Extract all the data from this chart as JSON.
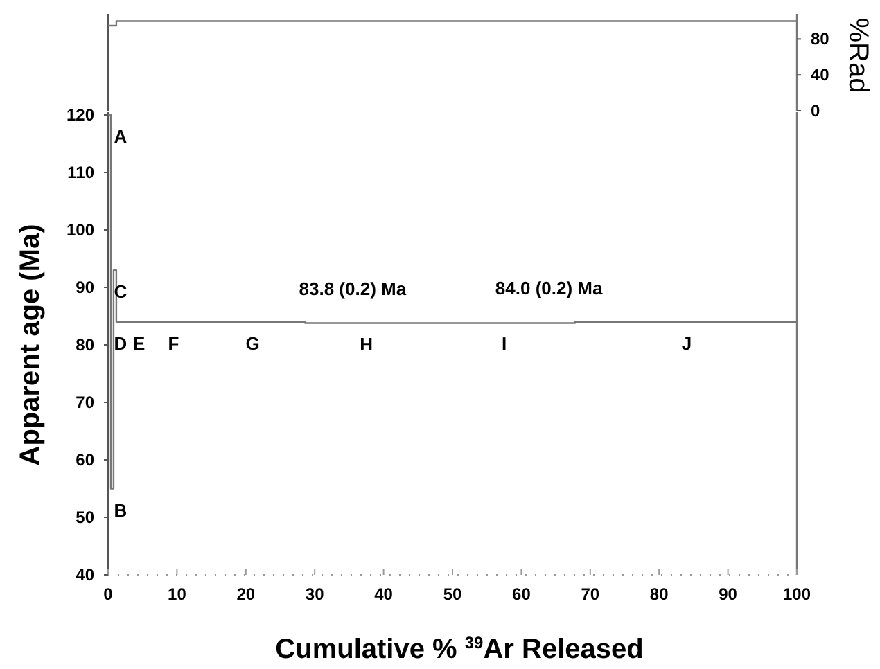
{
  "chart_data": [
    {
      "type": "step",
      "ylabel": "%Rad",
      "x": [
        0,
        0.4,
        0.8,
        1.2,
        2.2,
        5.6,
        12.9,
        28.6,
        46.7,
        67.8,
        100
      ],
      "values": [
        95,
        95,
        95,
        100,
        100,
        100,
        100,
        100,
        100,
        100,
        100
      ],
      "color": "#777777",
      "xlim": [
        0,
        100
      ],
      "ylim": [
        0,
        105
      ],
      "yticks": [
        0,
        40,
        80
      ],
      "tick_labels": "y"
    },
    {
      "type": "step",
      "xlabel": "Cumulative % $^{39}$Ar Released",
      "ylabel": "Apparent  age (Ma)",
      "x": [
        0,
        0.4,
        0.8,
        1.2,
        2.2,
        5.6,
        12.9,
        28.6,
        46.7,
        67.8,
        100
      ],
      "values": [
        120,
        55,
        93,
        84,
        84,
        84,
        84,
        83.8,
        83.8,
        84.0,
        84.0
      ],
      "color": "#777777",
      "xlim": [
        0,
        100
      ],
      "xticks": [
        0,
        10,
        20,
        30,
        40,
        50,
        60,
        70,
        80,
        90,
        100
      ],
      "ylim": [
        40,
        120
      ],
      "yticks": [
        40,
        50,
        60,
        70,
        80,
        90,
        100,
        110,
        120
      ],
      "annotations": [
        {
          "text": "A",
          "x": 0.2,
          "y": 120
        },
        {
          "text": "B",
          "x": 0.6,
          "y": 55
        },
        {
          "text": "C",
          "x": 1.0,
          "y": 93
        },
        {
          "text": "D",
          "x": 1.5,
          "y": 84
        },
        {
          "text": "E",
          "x": 4.5,
          "y": 84
        },
        {
          "text": "F",
          "x": 9.5,
          "y": 84
        },
        {
          "text": "G",
          "x": 21,
          "y": 84
        },
        {
          "text": "H",
          "x": 37.5,
          "y": 83.8
        },
        {
          "text": "I",
          "x": 57.5,
          "y": 84.0
        },
        {
          "text": "J",
          "x": 84,
          "y": 84.0
        },
        {
          "text": "83.8  (0.2) Ma",
          "x": 35.5,
          "y": 83.8
        },
        {
          "text": "84.0 (0.2) Ma",
          "x": 64,
          "y": 84.0
        }
      ]
    }
  ]
}
